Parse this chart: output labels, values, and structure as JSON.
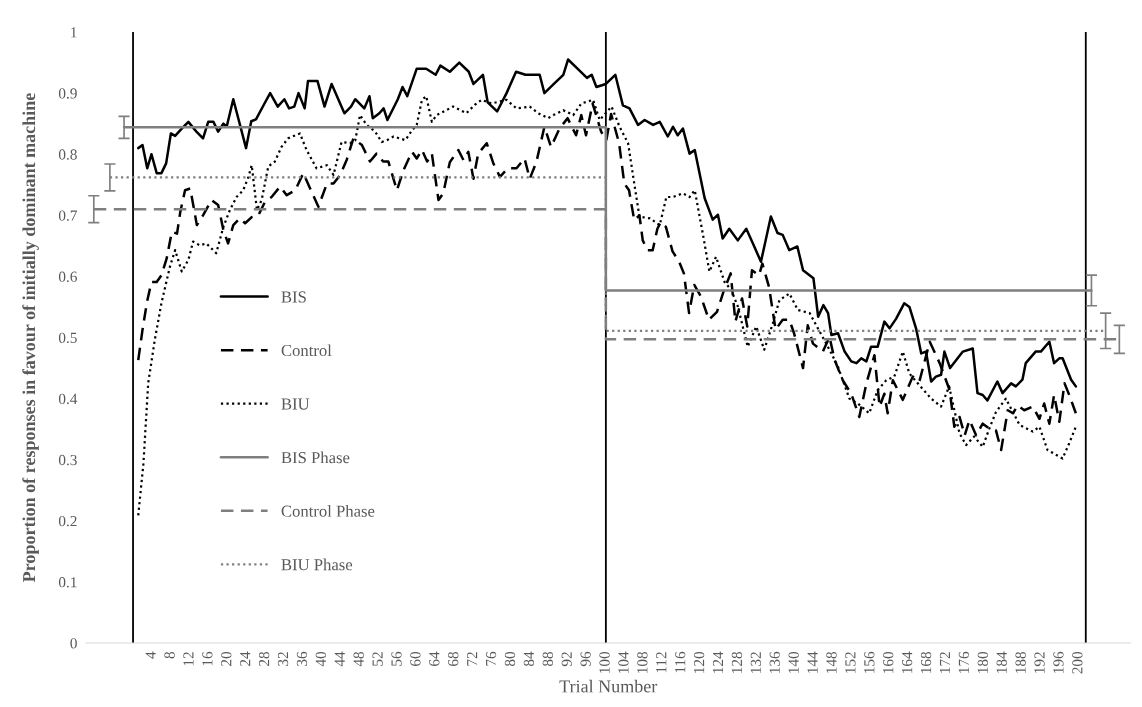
{
  "chart_data": {
    "type": "line",
    "xlabel": "Trial Number",
    "ylabel": "Proportion of responses in favour of initially dominant machine",
    "xlim": [
      -10,
      211
    ],
    "ylim": [
      0,
      1
    ],
    "xticks": [
      4,
      8,
      12,
      16,
      20,
      24,
      28,
      32,
      36,
      40,
      44,
      48,
      52,
      56,
      60,
      64,
      68,
      72,
      76,
      80,
      84,
      88,
      92,
      96,
      100,
      104,
      108,
      112,
      116,
      120,
      124,
      128,
      132,
      136,
      140,
      144,
      148,
      152,
      156,
      160,
      164,
      168,
      172,
      176,
      180,
      184,
      188,
      192,
      196,
      200
    ],
    "yticks": [
      0,
      0.1,
      0.2,
      0.3,
      0.4,
      0.5,
      0.6,
      0.7,
      0.8,
      0.9,
      1
    ],
    "legend": "center left",
    "grid": false,
    "ref_lines": [
      {
        "axis": "x",
        "value": 0,
        "color": "#000000"
      },
      {
        "axis": "x",
        "value": 100,
        "color": "#000000"
      },
      {
        "axis": "x",
        "value": 201.5,
        "color": "#000000"
      }
    ],
    "series": [
      {
        "name": "BIS",
        "color": "#000000",
        "line_style": "solid",
        "x": [
          1.1,
          2.0,
          3.0,
          3.9,
          5.0,
          6.0,
          7.0,
          8.0,
          8.9,
          10.3,
          11.7,
          13.4,
          14.8,
          15.9,
          17.0,
          18.0,
          19.1,
          19.8,
          21.2,
          23.9,
          25.0,
          26.0,
          27.8,
          29,
          30.6,
          32,
          33,
          34.1,
          35,
          36.3,
          37,
          39,
          40.5,
          42,
          44.7,
          46.1,
          47,
          48.9,
          50,
          50.7,
          52.1,
          53,
          53.8,
          56,
          57,
          58,
          60,
          62,
          64,
          65,
          67,
          69,
          71,
          72,
          74,
          75,
          77,
          79,
          81,
          83,
          86,
          87,
          89,
          91,
          92,
          94,
          96,
          97,
          98,
          100,
          102,
          103.6,
          105.0,
          106.8,
          108.2,
          110.0,
          111.4,
          113.1,
          114.2,
          115.2,
          116.3,
          117.7,
          118.8,
          120.9,
          122.6,
          123.7,
          124.7,
          126.1,
          127.9,
          129.7,
          131.1,
          132.8,
          134.9,
          136.3,
          137.4,
          138.8,
          140.5,
          141.7,
          143.9,
          144.9,
          146.0,
          147.0,
          147.7,
          149.1,
          150.5,
          151.9,
          153.0,
          154.0,
          155.1,
          156.1,
          157.5,
          158.9,
          160.0,
          161.4,
          163.1,
          164.2,
          165.6,
          166.7,
          167.7,
          168.8,
          169.8,
          170.9,
          171.6,
          172.8,
          175.5,
          177.6,
          178.6,
          179.7,
          180.7,
          182.8,
          183.9,
          185.7,
          186.7,
          188.1,
          188.8,
          190.9,
          192.0,
          193.8,
          194.8,
          195.9,
          196.6,
          198.4,
          199.4
        ],
        "values": [
          0.81,
          0.815,
          0.777,
          0.8,
          0.769,
          0.769,
          0.785,
          0.834,
          0.83,
          0.842,
          0.853,
          0.837,
          0.826,
          0.853,
          0.853,
          0.837,
          0.85,
          0.845,
          0.89,
          0.81,
          0.854,
          0.857,
          0.883,
          0.9,
          0.878,
          0.89,
          0.875,
          0.878,
          0.9,
          0.875,
          0.92,
          0.92,
          0.878,
          0.915,
          0.867,
          0.878,
          0.89,
          0.875,
          0.895,
          0.859,
          0.867,
          0.875,
          0.856,
          0.89,
          0.91,
          0.895,
          0.94,
          0.94,
          0.93,
          0.945,
          0.935,
          0.95,
          0.935,
          0.915,
          0.93,
          0.885,
          0.87,
          0.9,
          0.935,
          0.93,
          0.93,
          0.9,
          0.915,
          0.93,
          0.955,
          0.94,
          0.925,
          0.93,
          0.91,
          0.915,
          0.93,
          0.88,
          0.875,
          0.848,
          0.856,
          0.848,
          0.853,
          0.829,
          0.845,
          0.831,
          0.842,
          0.801,
          0.807,
          0.728,
          0.693,
          0.701,
          0.662,
          0.678,
          0.659,
          0.678,
          0.654,
          0.624,
          0.698,
          0.671,
          0.668,
          0.643,
          0.649,
          0.61,
          0.597,
          0.534,
          0.553,
          0.54,
          0.504,
          0.507,
          0.477,
          0.461,
          0.458,
          0.466,
          0.461,
          0.485,
          0.485,
          0.526,
          0.515,
          0.531,
          0.556,
          0.55,
          0.515,
          0.474,
          0.477,
          0.428,
          0.436,
          0.439,
          0.477,
          0.45,
          0.477,
          0.482,
          0.409,
          0.406,
          0.397,
          0.428,
          0.409,
          0.425,
          0.42,
          0.431,
          0.458,
          0.477,
          0.477,
          0.493,
          0.458,
          0.466,
          0.466,
          0.431,
          0.42
        ]
      },
      {
        "name": "Control",
        "color": "#000000",
        "line_style": "dashed",
        "x": [
          1.1,
          2.1,
          3.0,
          3.9,
          5.0,
          6.0,
          7.1,
          8.2,
          9.3,
          10.0,
          11.0,
          12.1,
          13.5,
          14.8,
          16.6,
          18.0,
          19.1,
          20.1,
          21.2,
          22.6,
          23.7,
          25.1,
          26.5,
          27.9,
          29.3,
          31.1,
          32.5,
          34.3,
          36.0,
          37.8,
          39.2,
          41.0,
          42.4,
          43.8,
          45.2,
          46.6,
          48.4,
          50.1,
          51.5,
          52.9,
          54.0,
          55.8,
          57.2,
          59.0,
          60.0,
          61.1,
          62.2,
          63.2,
          64.6,
          65.6,
          67.0,
          68.8,
          69.9,
          70.9,
          72.0,
          73.0,
          74.8,
          76.2,
          77.6,
          79.3,
          81.1,
          82.8,
          83.9,
          85.3,
          87.0,
          88.4,
          90.2,
          91.9,
          93.7,
          94.8,
          95.8,
          97.2,
          99.0,
          100.1,
          101.1,
          102.8,
          103.9,
          104.9,
          106.0,
          107.1,
          107.8,
          108.8,
          109.9,
          110.9,
          111.6,
          112.7,
          114.1,
          115.5,
          116.5,
          117.6,
          118.7,
          120.1,
          121.8,
          123.5,
          125.0,
          126.4,
          127.4,
          128.8,
          129.9,
          130.9,
          132.4,
          133.1,
          134.5,
          135.9,
          137.4,
          138.8,
          139.8,
          141.7,
          142.7,
          143.8,
          145.9,
          147.3,
          148.4,
          150.1,
          151.9,
          153.6,
          155.1,
          156.8,
          157.9,
          158.9,
          159.6,
          160.7,
          162.8,
          164.9,
          166.3,
          168.5,
          170.6,
          172.7,
          173.7,
          174.8,
          175.9,
          176.9,
          178.3,
          179.7,
          181.1,
          182.5,
          183.6,
          185.0,
          186.1,
          187.1,
          188.5,
          190.3,
          191.7,
          192.7,
          193.8,
          194.8,
          195.9,
          197.0,
          198.0,
          199.4
        ],
        "values": [
          0.463,
          0.518,
          0.56,
          0.591,
          0.591,
          0.602,
          0.629,
          0.673,
          0.67,
          0.706,
          0.741,
          0.744,
          0.684,
          0.7,
          0.725,
          0.717,
          0.676,
          0.654,
          0.684,
          0.695,
          0.687,
          0.697,
          0.7,
          0.722,
          0.73,
          0.747,
          0.733,
          0.741,
          0.769,
          0.738,
          0.714,
          0.752,
          0.752,
          0.766,
          0.791,
          0.826,
          0.815,
          0.788,
          0.801,
          0.788,
          0.788,
          0.741,
          0.774,
          0.804,
          0.793,
          0.807,
          0.788,
          0.801,
          0.725,
          0.736,
          0.787,
          0.807,
          0.79,
          0.804,
          0.76,
          0.801,
          0.818,
          0.785,
          0.763,
          0.777,
          0.777,
          0.793,
          0.76,
          0.787,
          0.845,
          0.812,
          0.842,
          0.859,
          0.831,
          0.864,
          0.831,
          0.883,
          0.837,
          0.823,
          0.866,
          0.818,
          0.752,
          0.741,
          0.692,
          0.7,
          0.659,
          0.643,
          0.643,
          0.678,
          0.689,
          0.681,
          0.641,
          0.624,
          0.605,
          0.54,
          0.586,
          0.567,
          0.529,
          0.542,
          0.578,
          0.605,
          0.526,
          0.564,
          0.518,
          0.61,
          0.602,
          0.621,
          0.583,
          0.513,
          0.529,
          0.529,
          0.507,
          0.45,
          0.52,
          0.49,
          0.477,
          0.501,
          0.463,
          0.43,
          0.408,
          0.37,
          0.425,
          0.471,
          0.387,
          0.408,
          0.376,
          0.43,
          0.398,
          0.436,
          0.428,
          0.493,
          0.458,
          0.414,
          0.354,
          0.37,
          0.34,
          0.365,
          0.34,
          0.359,
          0.351,
          0.348,
          0.316,
          0.381,
          0.376,
          0.389,
          0.381,
          0.387,
          0.367,
          0.392,
          0.359,
          0.406,
          0.362,
          0.425,
          0.406,
          0.376
        ]
      },
      {
        "name": "BIU",
        "color": "#000000",
        "line_style": "dotted",
        "x": [
          1.1,
          2.2,
          3.2,
          4.6,
          6.0,
          7.8,
          8.9,
          10.3,
          11.7,
          12.7,
          14.1,
          15.5,
          17.6,
          19.1,
          20.5,
          21.9,
          23.3,
          24.4,
          25.1,
          26.2,
          27.2,
          28.6,
          30.0,
          31.4,
          32.8,
          35.3,
          36.7,
          38.8,
          41.0,
          42.4,
          44.1,
          45.9,
          47.0,
          48.0,
          49.4,
          51.2,
          52.6,
          53.7,
          55.1,
          57.6,
          59.0,
          60.0,
          61.1,
          62,
          63.2,
          64.2,
          67.7,
          70.5,
          72.3,
          73.7,
          75.8,
          79.0,
          81.1,
          83.9,
          85.7,
          87.8,
          88.9,
          91.0,
          93.1,
          94.8,
          97.3,
          98.7,
          101.2,
          102.9,
          104.7,
          106.1,
          107.1,
          109.3,
          111.4,
          112.8,
          114.2,
          116.3,
          117.7,
          118.8,
          120.5,
          121.9,
          123.3,
          125.1,
          126.5,
          127.9,
          130.0,
          131.8,
          133.5,
          135.3,
          136.7,
          138.8,
          140.6,
          143.1,
          145.2,
          147.3,
          149.1,
          151.5,
          153.3,
          155.7,
          157.5,
          159.3,
          161.0,
          162.8,
          164.2,
          166.3,
          168.8,
          170.9,
          172.6,
          174.8,
          176.2,
          177.9,
          179.7,
          181.1,
          182.5,
          184.6,
          187.5,
          190.3,
          191.7,
          193.4,
          196.6,
          198.0,
          199.4
        ],
        "values": [
          0.209,
          0.294,
          0.425,
          0.496,
          0.556,
          0.616,
          0.643,
          0.608,
          0.627,
          0.657,
          0.651,
          0.654,
          0.638,
          0.681,
          0.709,
          0.73,
          0.741,
          0.763,
          0.782,
          0.709,
          0.725,
          0.78,
          0.788,
          0.812,
          0.826,
          0.834,
          0.807,
          0.777,
          0.782,
          0.766,
          0.82,
          0.818,
          0.823,
          0.864,
          0.848,
          0.837,
          0.82,
          0.823,
          0.829,
          0.823,
          0.839,
          0.848,
          0.889,
          0.895,
          0.853,
          0.864,
          0.878,
          0.867,
          0.881,
          0.889,
          0.883,
          0.889,
          0.875,
          0.878,
          0.867,
          0.859,
          0.864,
          0.872,
          0.864,
          0.883,
          0.889,
          0.856,
          0.878,
          0.845,
          0.818,
          0.747,
          0.698,
          0.695,
          0.684,
          0.73,
          0.73,
          0.736,
          0.73,
          0.741,
          0.67,
          0.608,
          0.632,
          0.591,
          0.578,
          0.551,
          0.485,
          0.518,
          0.48,
          0.523,
          0.561,
          0.572,
          0.545,
          0.54,
          0.51,
          0.48,
          0.452,
          0.4,
          0.392,
          0.376,
          0.414,
          0.43,
          0.436,
          0.477,
          0.441,
          0.422,
          0.4,
          0.387,
          0.42,
          0.343,
          0.324,
          0.338,
          0.321,
          0.351,
          0.378,
          0.4,
          0.357,
          0.346,
          0.354,
          0.316,
          0.302,
          0.327,
          0.354
        ]
      },
      {
        "name": "BIS Phase",
        "color": "#7f7f7f",
        "line_style": "solid",
        "x": [
          -1.9,
          100,
          100,
          202.7
        ],
        "values": [
          0.844,
          0.844,
          0.577,
          0.577
        ],
        "errors": [
          0.018,
          null,
          null,
          0.025
        ]
      },
      {
        "name": "Control Phase",
        "color": "#7f7f7f",
        "line_style": "dashed",
        "x": [
          -8.3,
          100,
          100,
          208.6
        ],
        "values": [
          0.71,
          0.71,
          0.497,
          0.497
        ],
        "errors": [
          0.022,
          null,
          null,
          0.023
        ]
      },
      {
        "name": "BIU Phase",
        "color": "#7f7f7f",
        "line_style": "dotted",
        "x": [
          -4.9,
          100,
          100,
          205.7
        ],
        "values": [
          0.762,
          0.762,
          0.511,
          0.511
        ],
        "errors": [
          0.022,
          null,
          null,
          0.029
        ]
      }
    ]
  }
}
